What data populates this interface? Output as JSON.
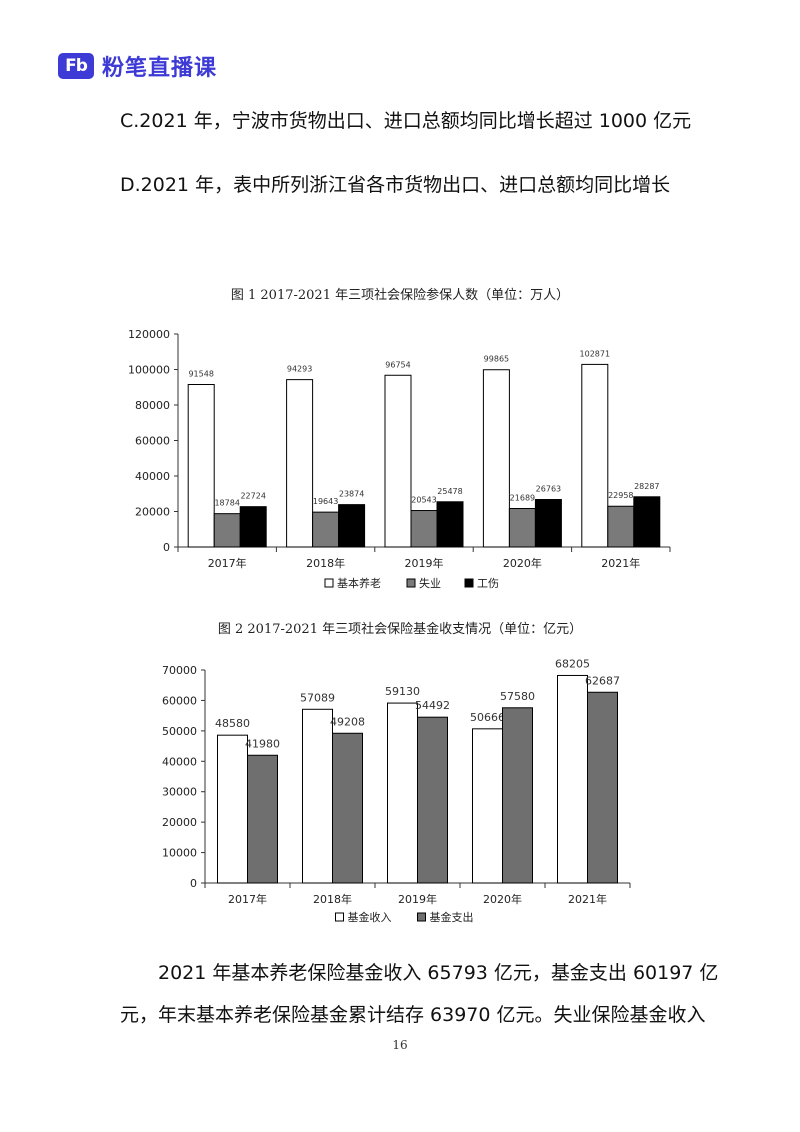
{
  "brand": {
    "mark": "Fb",
    "name": "粉笔直播课"
  },
  "options": [
    "C.2021 年，宁波市货物出口、进口总额均同比增长超过 1000 亿元",
    "D.2021 年，表中所列浙江省各市货物出口、进口总额均同比增长"
  ],
  "chart_data": [
    {
      "type": "bar",
      "title": "图 1  2017-2021 年三项社会保险参保人数（单位：万人）",
      "categories": [
        "2017年",
        "2018年",
        "2019年",
        "2020年",
        "2021年"
      ],
      "series": [
        {
          "name": "基本养老",
          "values": [
            91548,
            94293,
            96754,
            99865,
            102871
          ],
          "color": "#ffffff"
        },
        {
          "name": "失业",
          "values": [
            18784,
            19643,
            20543,
            21689,
            22958
          ],
          "color": "#7a7a7a"
        },
        {
          "name": "工伤",
          "values": [
            22724,
            23874,
            25478,
            26763,
            28287
          ],
          "color": "#000000"
        }
      ],
      "ylim": [
        0,
        120000
      ],
      "yticks": [
        0,
        20000,
        40000,
        60000,
        80000,
        100000,
        120000
      ],
      "legend": "bottom"
    },
    {
      "type": "bar",
      "title": "图 2  2017-2021 年三项社会保险基金收支情况（单位：亿元）",
      "categories": [
        "2017年",
        "2018年",
        "2019年",
        "2020年",
        "2021年"
      ],
      "series": [
        {
          "name": "基金收入",
          "values": [
            48580,
            57089,
            59130,
            50666,
            68205
          ],
          "color": "#ffffff"
        },
        {
          "name": "基金支出",
          "values": [
            41980,
            49208,
            54492,
            57580,
            62687
          ],
          "color": "#6f6f6f"
        }
      ],
      "ylim": [
        0,
        70000
      ],
      "yticks": [
        0,
        10000,
        20000,
        30000,
        40000,
        50000,
        60000,
        70000
      ],
      "legend": "bottom"
    }
  ],
  "paragraph": {
    "line1": "2021 年基本养老保险基金收入 65793 亿元，基金支出 60197 亿",
    "line2": "元，年末基本养老保险基金累计结存 63970 亿元。失业保险基金收入"
  },
  "page_number": "16"
}
